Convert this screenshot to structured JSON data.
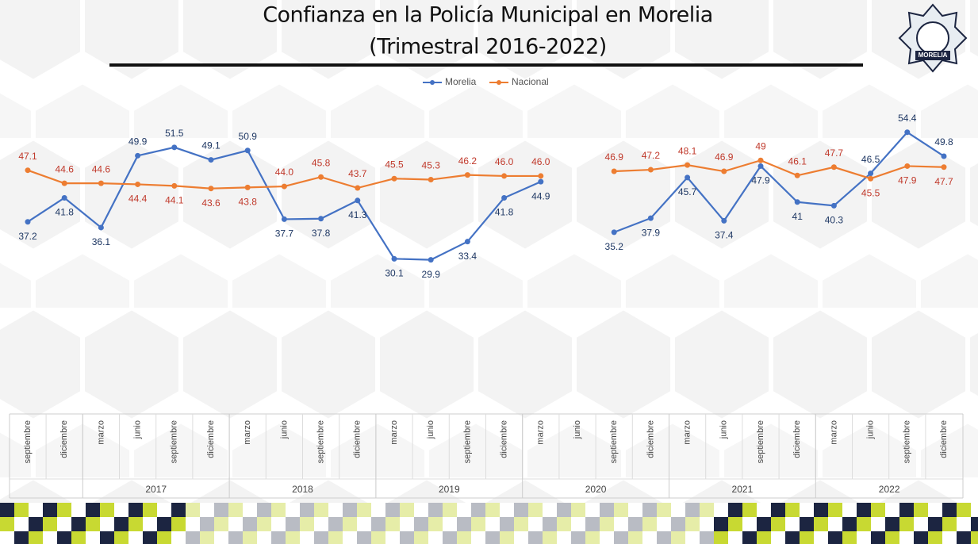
{
  "chart_data": {
    "type": "line",
    "title": "Confianza en la Policía Municipal en Morelia",
    "subtitle": "(Trimestral 2016-2022)",
    "badge_text": "MORELIA",
    "categories": [
      "septiembre",
      "diciembre",
      "marzo",
      "junio",
      "septiembre",
      "diciembre",
      "marzo",
      "junio",
      "septiembre",
      "diciembre",
      "marzo",
      "junio",
      "septiembre",
      "diciembre",
      "marzo",
      "junio",
      "septiembre",
      "diciembre",
      "marzo",
      "junio",
      "septiembre",
      "diciembre",
      "marzo",
      "junio",
      "septiembre",
      "diciembre"
    ],
    "year_labels": [
      null,
      "2017",
      "2018",
      "2019",
      "2020",
      "2021",
      "2022"
    ],
    "ylim": [
      0,
      60
    ],
    "series": [
      {
        "name": "Morelia",
        "color": "#4472c4",
        "label_color": "#1f3864",
        "values": [
          37.2,
          41.8,
          36.1,
          49.9,
          51.5,
          49.1,
          50.9,
          37.7,
          37.8,
          41.3,
          30.1,
          29.9,
          33.4,
          41.8,
          44.9,
          null,
          35.2,
          37.9,
          45.7,
          37.4,
          47.9,
          41,
          40.3,
          46.5,
          54.4,
          49.8
        ],
        "value_labels": [
          "37.2",
          "41.8",
          "36.1",
          "49.9",
          "51.5",
          "49.1",
          "50.9",
          "37.7",
          "37.8",
          "41.3",
          "30.1",
          "29.9",
          "33.4",
          "41.8",
          "44.9",
          null,
          "35.2",
          "37.9",
          "45.7",
          "37.4",
          "47.9",
          "41",
          "40.3",
          "46.5",
          "54.4",
          "49.8"
        ]
      },
      {
        "name": "Nacional",
        "color": "#ed7d31",
        "label_color": "#c0392b",
        "values": [
          47.1,
          44.6,
          44.6,
          44.4,
          44.1,
          43.6,
          43.8,
          44.0,
          45.8,
          43.7,
          45.5,
          45.3,
          46.2,
          46.0,
          46.0,
          null,
          46.9,
          47.2,
          48.1,
          46.9,
          49,
          46.1,
          47.7,
          45.5,
          47.9,
          47.7
        ],
        "value_labels": [
          "47.1",
          "44.6",
          "44.6",
          "44.4",
          "44.1",
          "43.6",
          "43.8",
          "44.0",
          "45.8",
          "43.7",
          "45.5",
          "45.3",
          "46.2",
          "46.0",
          "46.0",
          null,
          "46.9",
          "47.2",
          "48.1",
          "46.9",
          "49",
          "46.1",
          "47.7",
          "45.5",
          "47.9",
          "47.7"
        ]
      }
    ],
    "legend": "top"
  }
}
